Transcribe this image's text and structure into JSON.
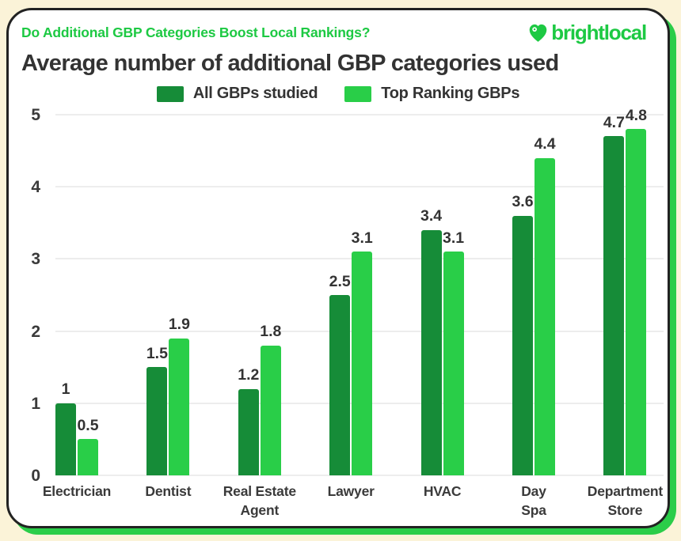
{
  "page": {
    "background": "#FBF3D8",
    "card_shadow": "#2BCD49",
    "card_border": "#222222"
  },
  "header": {
    "question": "Do Additional GBP Categories Boost Local Rankings?",
    "question_color": "#1DC943",
    "logo_text": "brightlocal",
    "logo_color": "#1DC943"
  },
  "title": "Average number of additional GBP categories used",
  "chart_data": {
    "type": "bar",
    "title": "Average number of additional GBP categories used",
    "categories": [
      "Electrician",
      "Dentist",
      "Real Estate\nAgent",
      "Lawyer",
      "HVAC",
      "Day\nSpa",
      "Department\nStore"
    ],
    "series": [
      {
        "name": "All GBPs studied",
        "color": "#168C38",
        "values": [
          1,
          1.5,
          1.2,
          2.5,
          3.4,
          3.6,
          4.7
        ],
        "labels": [
          "1",
          "1.5",
          "1.2",
          "2.5",
          "3.4",
          "3.6",
          "4.7"
        ]
      },
      {
        "name": "Top Ranking GBPs",
        "color": "#29CE48",
        "values": [
          0.5,
          1.9,
          1.8,
          3.1,
          3.1,
          4.4,
          4.8
        ],
        "labels": [
          "0.5",
          "1.9",
          "1.8",
          "3.1",
          "3.1",
          "4.4",
          "4.8"
        ]
      }
    ],
    "yticks": [
      0,
      1,
      2,
      3,
      4,
      5
    ],
    "ylim": [
      0,
      5
    ],
    "xlabel": "",
    "ylabel": "",
    "grid": true,
    "gridline_color": "#EDEDED",
    "legend_position": "top-center"
  }
}
